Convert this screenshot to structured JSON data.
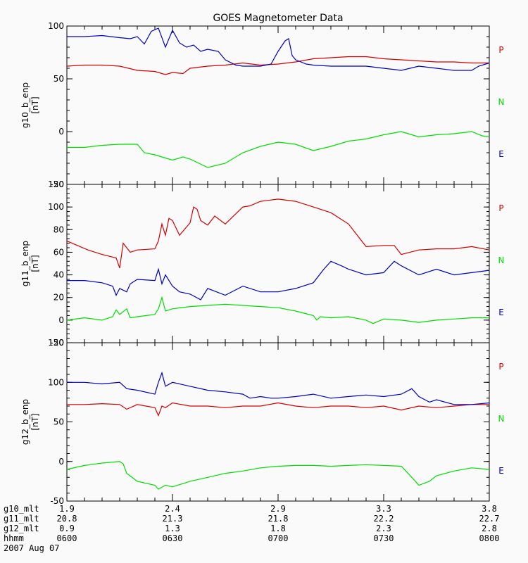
{
  "colors": {
    "P": "#d40000",
    "N": "#00dd00",
    "E": "#0000c0",
    "axis": "#000000",
    "background": "#fafafa"
  },
  "chart_data": {
    "type": "line",
    "title": "GOES Magnetometer Data",
    "x_range_hhmm": [
      "0600",
      "0800"
    ],
    "date": "2007 Aug 07",
    "legend_labels": [
      "P",
      "N",
      "E"
    ],
    "panels": [
      {
        "ylabel_line1": "g10_b_enp",
        "ylabel_line2": "[nT]",
        "ylim": [
          -50,
          100
        ],
        "yticks": [
          -50,
          0,
          50,
          100
        ],
        "series": [
          {
            "name": "P",
            "x": [
              0,
              5,
              10,
              15,
              20,
              25,
              28,
              30,
              33,
              35,
              40,
              45,
              50,
              55,
              60,
              65,
              70,
              75,
              80,
              85,
              90,
              95,
              100,
              105,
              110,
              115,
              120
            ],
            "y": [
              62,
              63,
              63,
              62,
              58,
              57,
              54,
              56,
              55,
              60,
              62,
              63,
              65,
              63,
              64,
              66,
              69,
              70,
              71,
              71,
              69,
              68,
              67,
              66,
              66,
              65,
              65
            ]
          },
          {
            "name": "N",
            "x": [
              0,
              5,
              10,
              15,
              20,
              22,
              25,
              28,
              30,
              33,
              35,
              40,
              45,
              50,
              55,
              60,
              65,
              70,
              75,
              80,
              85,
              90,
              95,
              100,
              105,
              110,
              115,
              118,
              120
            ],
            "y": [
              -15,
              -15,
              -13,
              -12,
              -12,
              -20,
              -22,
              -25,
              -27,
              -24,
              -26,
              -34,
              -30,
              -20,
              -14,
              -10,
              -12,
              -18,
              -14,
              -9,
              -7,
              -3,
              0,
              -5,
              -3,
              -2,
              0,
              -4,
              -5
            ]
          },
          {
            "name": "E",
            "x": [
              0,
              5,
              10,
              15,
              18,
              20,
              22,
              24,
              26,
              28,
              30,
              32,
              34,
              36,
              38,
              40,
              43,
              45,
              48,
              50,
              55,
              58,
              60,
              62,
              63,
              64,
              65,
              68,
              70,
              75,
              80,
              85,
              90,
              95,
              100,
              105,
              110,
              115,
              117,
              120
            ],
            "y": [
              90,
              90,
              91,
              89,
              88,
              90,
              83,
              95,
              98,
              80,
              96,
              84,
              80,
              82,
              76,
              78,
              76,
              68,
              63,
              62,
              62,
              64,
              76,
              86,
              88,
              72,
              68,
              64,
              63,
              62,
              62,
              62,
              60,
              58,
              62,
              60,
              58,
              58,
              62,
              65
            ]
          }
        ]
      },
      {
        "ylabel_line1": "g11_b_enp",
        "ylabel_line2": "[nT]",
        "ylim": [
          -20,
          120
        ],
        "yticks": [
          -20,
          0,
          20,
          40,
          60,
          80,
          100,
          120
        ],
        "series": [
          {
            "name": "P",
            "x": [
              0,
              3,
              6,
              10,
              14,
              15,
              16,
              18,
              20,
              25,
              26,
              27,
              28,
              29,
              30,
              32,
              35,
              36,
              37,
              38,
              40,
              42,
              45,
              50,
              52,
              55,
              60,
              65,
              70,
              75,
              80,
              85,
              90,
              93,
              95,
              100,
              105,
              110,
              115,
              120
            ],
            "y": [
              70,
              66,
              62,
              58,
              55,
              46,
              68,
              60,
              62,
              63,
              70,
              85,
              75,
              90,
              88,
              75,
              86,
              100,
              98,
              88,
              84,
              92,
              85,
              100,
              101,
              105,
              107,
              105,
              100,
              95,
              85,
              65,
              66,
              66,
              58,
              62,
              63,
              63,
              65,
              62
            ]
          },
          {
            "name": "N",
            "x": [
              0,
              5,
              10,
              13,
              14,
              15,
              17,
              18,
              20,
              25,
              26,
              27,
              28,
              30,
              35,
              40,
              45,
              50,
              55,
              60,
              65,
              70,
              71,
              72,
              75,
              80,
              85,
              87,
              90,
              95,
              100,
              105,
              110,
              115,
              120
            ],
            "y": [
              0,
              2,
              0,
              3,
              9,
              5,
              10,
              2,
              3,
              5,
              10,
              20,
              8,
              10,
              12,
              13,
              14,
              13,
              12,
              11,
              8,
              4,
              0,
              3,
              2,
              3,
              0,
              -3,
              1,
              0,
              -2,
              0,
              1,
              2,
              2
            ]
          },
          {
            "name": "E",
            "x": [
              0,
              5,
              10,
              13,
              14,
              15,
              17,
              18,
              20,
              25,
              26,
              27,
              28,
              30,
              32,
              35,
              38,
              40,
              45,
              50,
              55,
              60,
              65,
              70,
              73,
              75,
              78,
              80,
              85,
              90,
              93,
              95,
              100,
              105,
              110,
              115,
              120
            ],
            "y": [
              35,
              35,
              33,
              30,
              22,
              28,
              25,
              32,
              36,
              35,
              45,
              32,
              40,
              30,
              25,
              23,
              18,
              28,
              22,
              30,
              25,
              25,
              28,
              33,
              45,
              52,
              48,
              45,
              40,
              42,
              52,
              48,
              40,
              45,
              40,
              42,
              44
            ]
          }
        ]
      },
      {
        "ylabel_line1": "g12_b_enp",
        "ylabel_line2": "[nT]",
        "ylim": [
          -50,
          150
        ],
        "yticks": [
          -50,
          0,
          50,
          100,
          150
        ],
        "series": [
          {
            "name": "P",
            "x": [
              0,
              5,
              10,
              15,
              17,
              20,
              25,
              26,
              27,
              28,
              30,
              35,
              40,
              45,
              50,
              55,
              60,
              65,
              70,
              75,
              80,
              85,
              90,
              95,
              100,
              105,
              110,
              115,
              120
            ],
            "y": [
              72,
              72,
              73,
              72,
              66,
              72,
              68,
              58,
              70,
              68,
              74,
              70,
              70,
              68,
              70,
              70,
              74,
              70,
              68,
              70,
              70,
              68,
              70,
              65,
              70,
              68,
              70,
              72,
              72
            ]
          },
          {
            "name": "N",
            "x": [
              0,
              5,
              10,
              15,
              16,
              17,
              20,
              25,
              26,
              28,
              30,
              35,
              40,
              45,
              50,
              55,
              60,
              65,
              70,
              75,
              80,
              85,
              90,
              95,
              98,
              100,
              103,
              105,
              110,
              115,
              120
            ],
            "y": [
              -10,
              -5,
              -2,
              0,
              -3,
              -15,
              -25,
              -30,
              -35,
              -30,
              -32,
              -25,
              -20,
              -15,
              -12,
              -8,
              -6,
              -5,
              -5,
              -6,
              -5,
              -4,
              -5,
              -6,
              -20,
              -30,
              -25,
              -18,
              -12,
              -8,
              -10
            ]
          },
          {
            "name": "E",
            "x": [
              0,
              5,
              10,
              15,
              17,
              20,
              25,
              26,
              27,
              28,
              30,
              35,
              40,
              45,
              50,
              52,
              55,
              58,
              60,
              65,
              70,
              75,
              80,
              85,
              90,
              95,
              98,
              100,
              103,
              105,
              110,
              115,
              120
            ],
            "y": [
              100,
              100,
              98,
              100,
              92,
              90,
              85,
              100,
              112,
              95,
              100,
              95,
              90,
              88,
              85,
              80,
              82,
              80,
              80,
              82,
              85,
              80,
              82,
              84,
              82,
              85,
              92,
              82,
              75,
              78,
              72,
              72,
              74
            ]
          }
        ]
      }
    ],
    "xticks": [
      {
        "g10_mlt": "1.9",
        "g11_mlt": "20.8",
        "g12_mlt": "0.9",
        "hhmm": "0600"
      },
      {
        "g10_mlt": "2.4",
        "g11_mlt": "21.3",
        "g12_mlt": "1.3",
        "hhmm": "0630"
      },
      {
        "g10_mlt": "2.9",
        "g11_mlt": "21.8",
        "g12_mlt": "1.8",
        "hhmm": "0700"
      },
      {
        "g10_mlt": "3.3",
        "g11_mlt": "22.2",
        "g12_mlt": "2.3",
        "hhmm": "0730"
      },
      {
        "g10_mlt": "3.8",
        "g11_mlt": "22.7",
        "g12_mlt": "2.8",
        "hhmm": "0800"
      }
    ],
    "row_labels": [
      "g10_mlt",
      "g11_mlt",
      "g12_mlt",
      "hhmm"
    ]
  }
}
